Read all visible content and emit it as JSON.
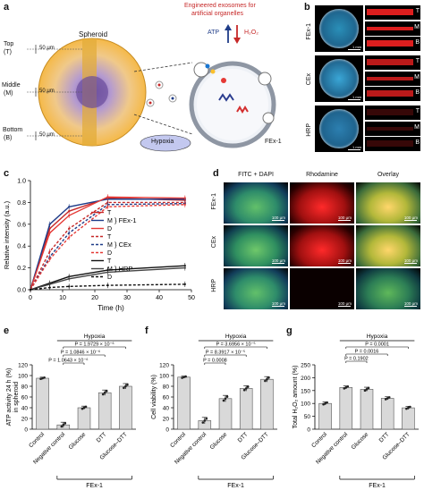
{
  "panel_labels": {
    "a": "a",
    "b": "b",
    "c": "c",
    "d": "d",
    "e": "e",
    "f": "f",
    "g": "g"
  },
  "panel_a": {
    "title": "Spheroid",
    "layers": [
      "Top (T)",
      "Middle (M)",
      "Bottom (B)"
    ],
    "layer_top": [
      "Top",
      "(T)"
    ],
    "layer_mid": [
      "Middle",
      "(M)"
    ],
    "layer_bot": [
      "Bottom",
      "(B)"
    ],
    "thickness": "50 μm",
    "exosome_title": [
      "Engineered exosomes for",
      "artificial organelles"
    ],
    "atp": "ATP",
    "h2o2": "H₂O₂",
    "hypoxia": "Hypoxia",
    "fex": "FEx-1"
  },
  "panel_b": {
    "rows": [
      "FEx-1",
      "CEx",
      "HRP"
    ],
    "scale": "1 mm",
    "side_labels": [
      "T",
      "M",
      "B"
    ]
  },
  "panel_c": {
    "chart_data": {
      "type": "line",
      "xlabel": "Time (h)",
      "ylabel": "Relative intensity (a.u.)",
      "xlim": [
        0,
        50
      ],
      "ylim": [
        0,
        1
      ],
      "xticks": [
        0,
        10,
        20,
        30,
        40,
        50
      ],
      "yticks": [
        0,
        0.2,
        0.4,
        0.6,
        0.8,
        1.0
      ],
      "x": [
        0,
        6,
        12,
        24,
        48
      ],
      "legend_groups": [
        "FEx-1",
        "CEx",
        "HRP"
      ],
      "legend_layers": [
        "T",
        "M",
        "D"
      ],
      "series": [
        {
          "group": "FEx-1",
          "layer": "T",
          "color": "#c62828",
          "dashed": false,
          "values": [
            0,
            0.56,
            0.72,
            0.84,
            0.82
          ]
        },
        {
          "group": "FEx-1",
          "layer": "M",
          "color": "#1f3c88",
          "dashed": false,
          "values": [
            0,
            0.6,
            0.76,
            0.83,
            0.83
          ]
        },
        {
          "group": "FEx-1",
          "layer": "D",
          "color": "#e53935",
          "dashed": false,
          "values": [
            0,
            0.52,
            0.68,
            0.85,
            0.84
          ]
        },
        {
          "group": "CEx",
          "layer": "T",
          "color": "#c62828",
          "dashed": true,
          "values": [
            0,
            0.35,
            0.56,
            0.8,
            0.8
          ]
        },
        {
          "group": "CEx",
          "layer": "M",
          "color": "#1f3c88",
          "dashed": true,
          "values": [
            0,
            0.3,
            0.52,
            0.78,
            0.79
          ]
        },
        {
          "group": "CEx",
          "layer": "D",
          "color": "#e53935",
          "dashed": true,
          "values": [
            0,
            0.28,
            0.48,
            0.76,
            0.78
          ]
        },
        {
          "group": "HRP",
          "layer": "T",
          "color": "#111111",
          "dashed": false,
          "values": [
            0,
            0.06,
            0.12,
            0.18,
            0.22
          ]
        },
        {
          "group": "HRP",
          "layer": "M",
          "color": "#444444",
          "dashed": false,
          "values": [
            0,
            0.05,
            0.1,
            0.16,
            0.2
          ]
        },
        {
          "group": "HRP",
          "layer": "D",
          "color": "#111111",
          "dashed": true,
          "values": [
            0,
            0.02,
            0.03,
            0.04,
            0.05
          ]
        }
      ]
    }
  },
  "panel_d": {
    "columns": [
      "FITC + DAPI",
      "Rhodamine",
      "Overlay"
    ],
    "rows": [
      "FEx-1",
      "CEx",
      "HRP"
    ],
    "scale": "100 μm"
  },
  "panel_e": {
    "chart_data": {
      "type": "bar",
      "ylabel": "ATP activity 24 h (%) in spheroid",
      "ylabel_lines": [
        "ATP activity 24 h (%)",
        "in spheroid"
      ],
      "categories": [
        "Control",
        "Negative control",
        "Glucose",
        "DTT",
        "Glucose–DTT"
      ],
      "values": [
        95,
        8,
        40,
        68,
        80
      ],
      "errors": [
        2,
        5,
        3,
        5,
        5
      ],
      "ylim": [
        0,
        120
      ],
      "yticks": [
        0,
        20,
        40,
        60,
        80,
        100,
        120
      ],
      "hypoxia": "Hypoxia",
      "group_label": "FEx-1",
      "pvalues": [
        "P = 1.9729 × 10⁻⁶",
        "P = 1.0846 × 10⁻⁶",
        "P = 1.0643 × 10⁻⁶"
      ]
    }
  },
  "panel_f": {
    "chart_data": {
      "type": "bar",
      "ylabel": "Cell viability (%)",
      "categories": [
        "Control",
        "Negative control",
        "Glucose",
        "DTT",
        "Glucose–DTT"
      ],
      "values": [
        97,
        16,
        57,
        76,
        93
      ],
      "errors": [
        2,
        6,
        6,
        5,
        5
      ],
      "ylim": [
        0,
        120
      ],
      "yticks": [
        0,
        20,
        40,
        60,
        80,
        100,
        120
      ],
      "hypoxia": "Hypoxia",
      "group_label": "FEx-1",
      "pvalues": [
        "P = 3.6956 × 10⁻⁵",
        "P = 8.3917 × 10⁻⁵",
        "P = 0.0008"
      ]
    }
  },
  "panel_g": {
    "chart_data": {
      "type": "bar",
      "ylabel": "Total H₂O₂ amount (%)",
      "categories": [
        "Control",
        "Negative control",
        "Glucose",
        "DTT",
        "Glucose–DTT"
      ],
      "values": [
        100,
        162,
        155,
        120,
        83
      ],
      "errors": [
        6,
        6,
        8,
        6,
        6
      ],
      "ylim": [
        0,
        250
      ],
      "yticks": [
        0,
        50,
        100,
        150,
        200,
        250
      ],
      "hypoxia": "Hypoxia",
      "group_label": "FEx-1",
      "pvalues": [
        "P = 0.0001",
        "P = 0.0016",
        "P = 0.1902"
      ]
    }
  }
}
